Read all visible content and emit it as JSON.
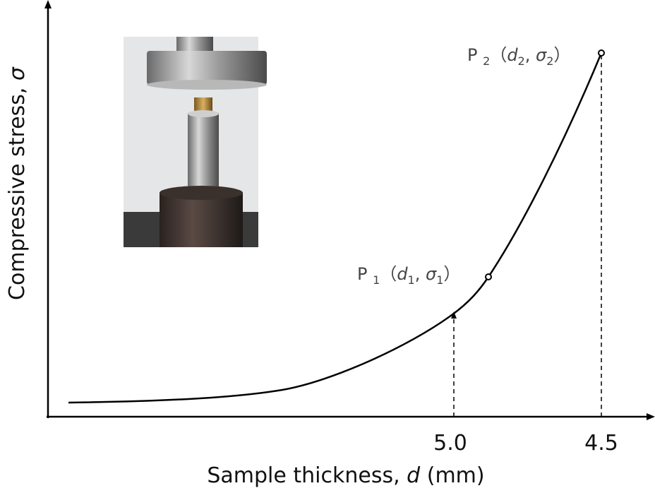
{
  "y_axis": {
    "label": "Compressive stress, ",
    "symbol": "σ"
  },
  "x_axis": {
    "label": "Sample thickness, ",
    "symbol": "d",
    "unit": " (mm)",
    "ticks": [
      "5.0",
      "4.5"
    ]
  },
  "points": [
    {
      "parts": [
        "P",
        "1",
        "（",
        "d",
        "1",
        ", ",
        "σ",
        "1",
        "）"
      ]
    },
    {
      "parts": [
        "P",
        "2",
        "（",
        "d",
        "2",
        ", ",
        "σ",
        "2",
        "）"
      ]
    }
  ]
}
